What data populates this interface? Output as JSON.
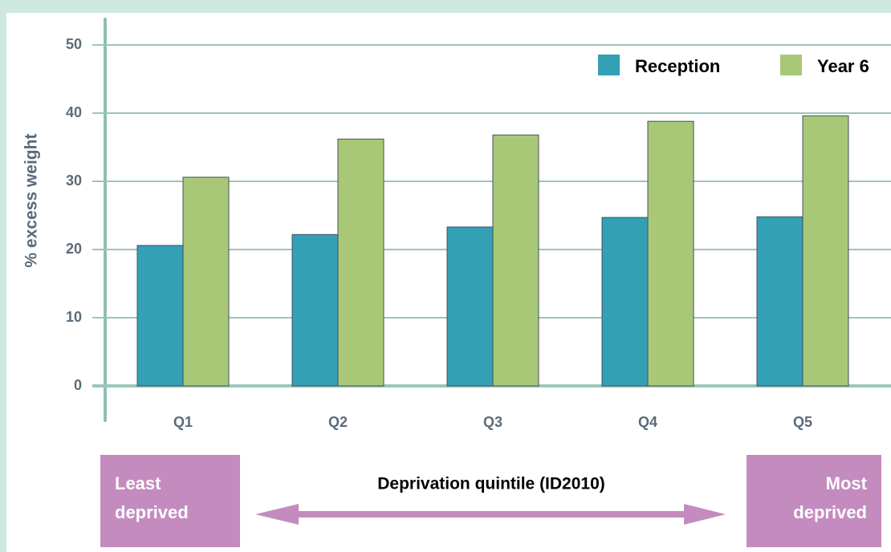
{
  "chart_data": {
    "type": "bar",
    "y_label": "% excess weight",
    "x_label": "Deprivation quintile (ID2010)",
    "categories": [
      "Q1",
      "Q2",
      "Q3",
      "Q4",
      "Q5"
    ],
    "series": [
      {
        "name": "Reception",
        "color": "#33a0b5",
        "values": [
          20.6,
          22.2,
          23.3,
          24.7,
          24.8
        ]
      },
      {
        "name": "Year 6",
        "color": "#a8c878",
        "values": [
          30.6,
          36.2,
          36.8,
          38.8,
          39.6
        ]
      }
    ],
    "ylim": [
      0,
      50
    ],
    "yticks": [
      0,
      10,
      20,
      30,
      40,
      50
    ],
    "grid": true,
    "legend": "upper right",
    "annotations": [
      [
        "Least",
        "deprived"
      ],
      [
        "Most",
        "deprived"
      ]
    ]
  }
}
